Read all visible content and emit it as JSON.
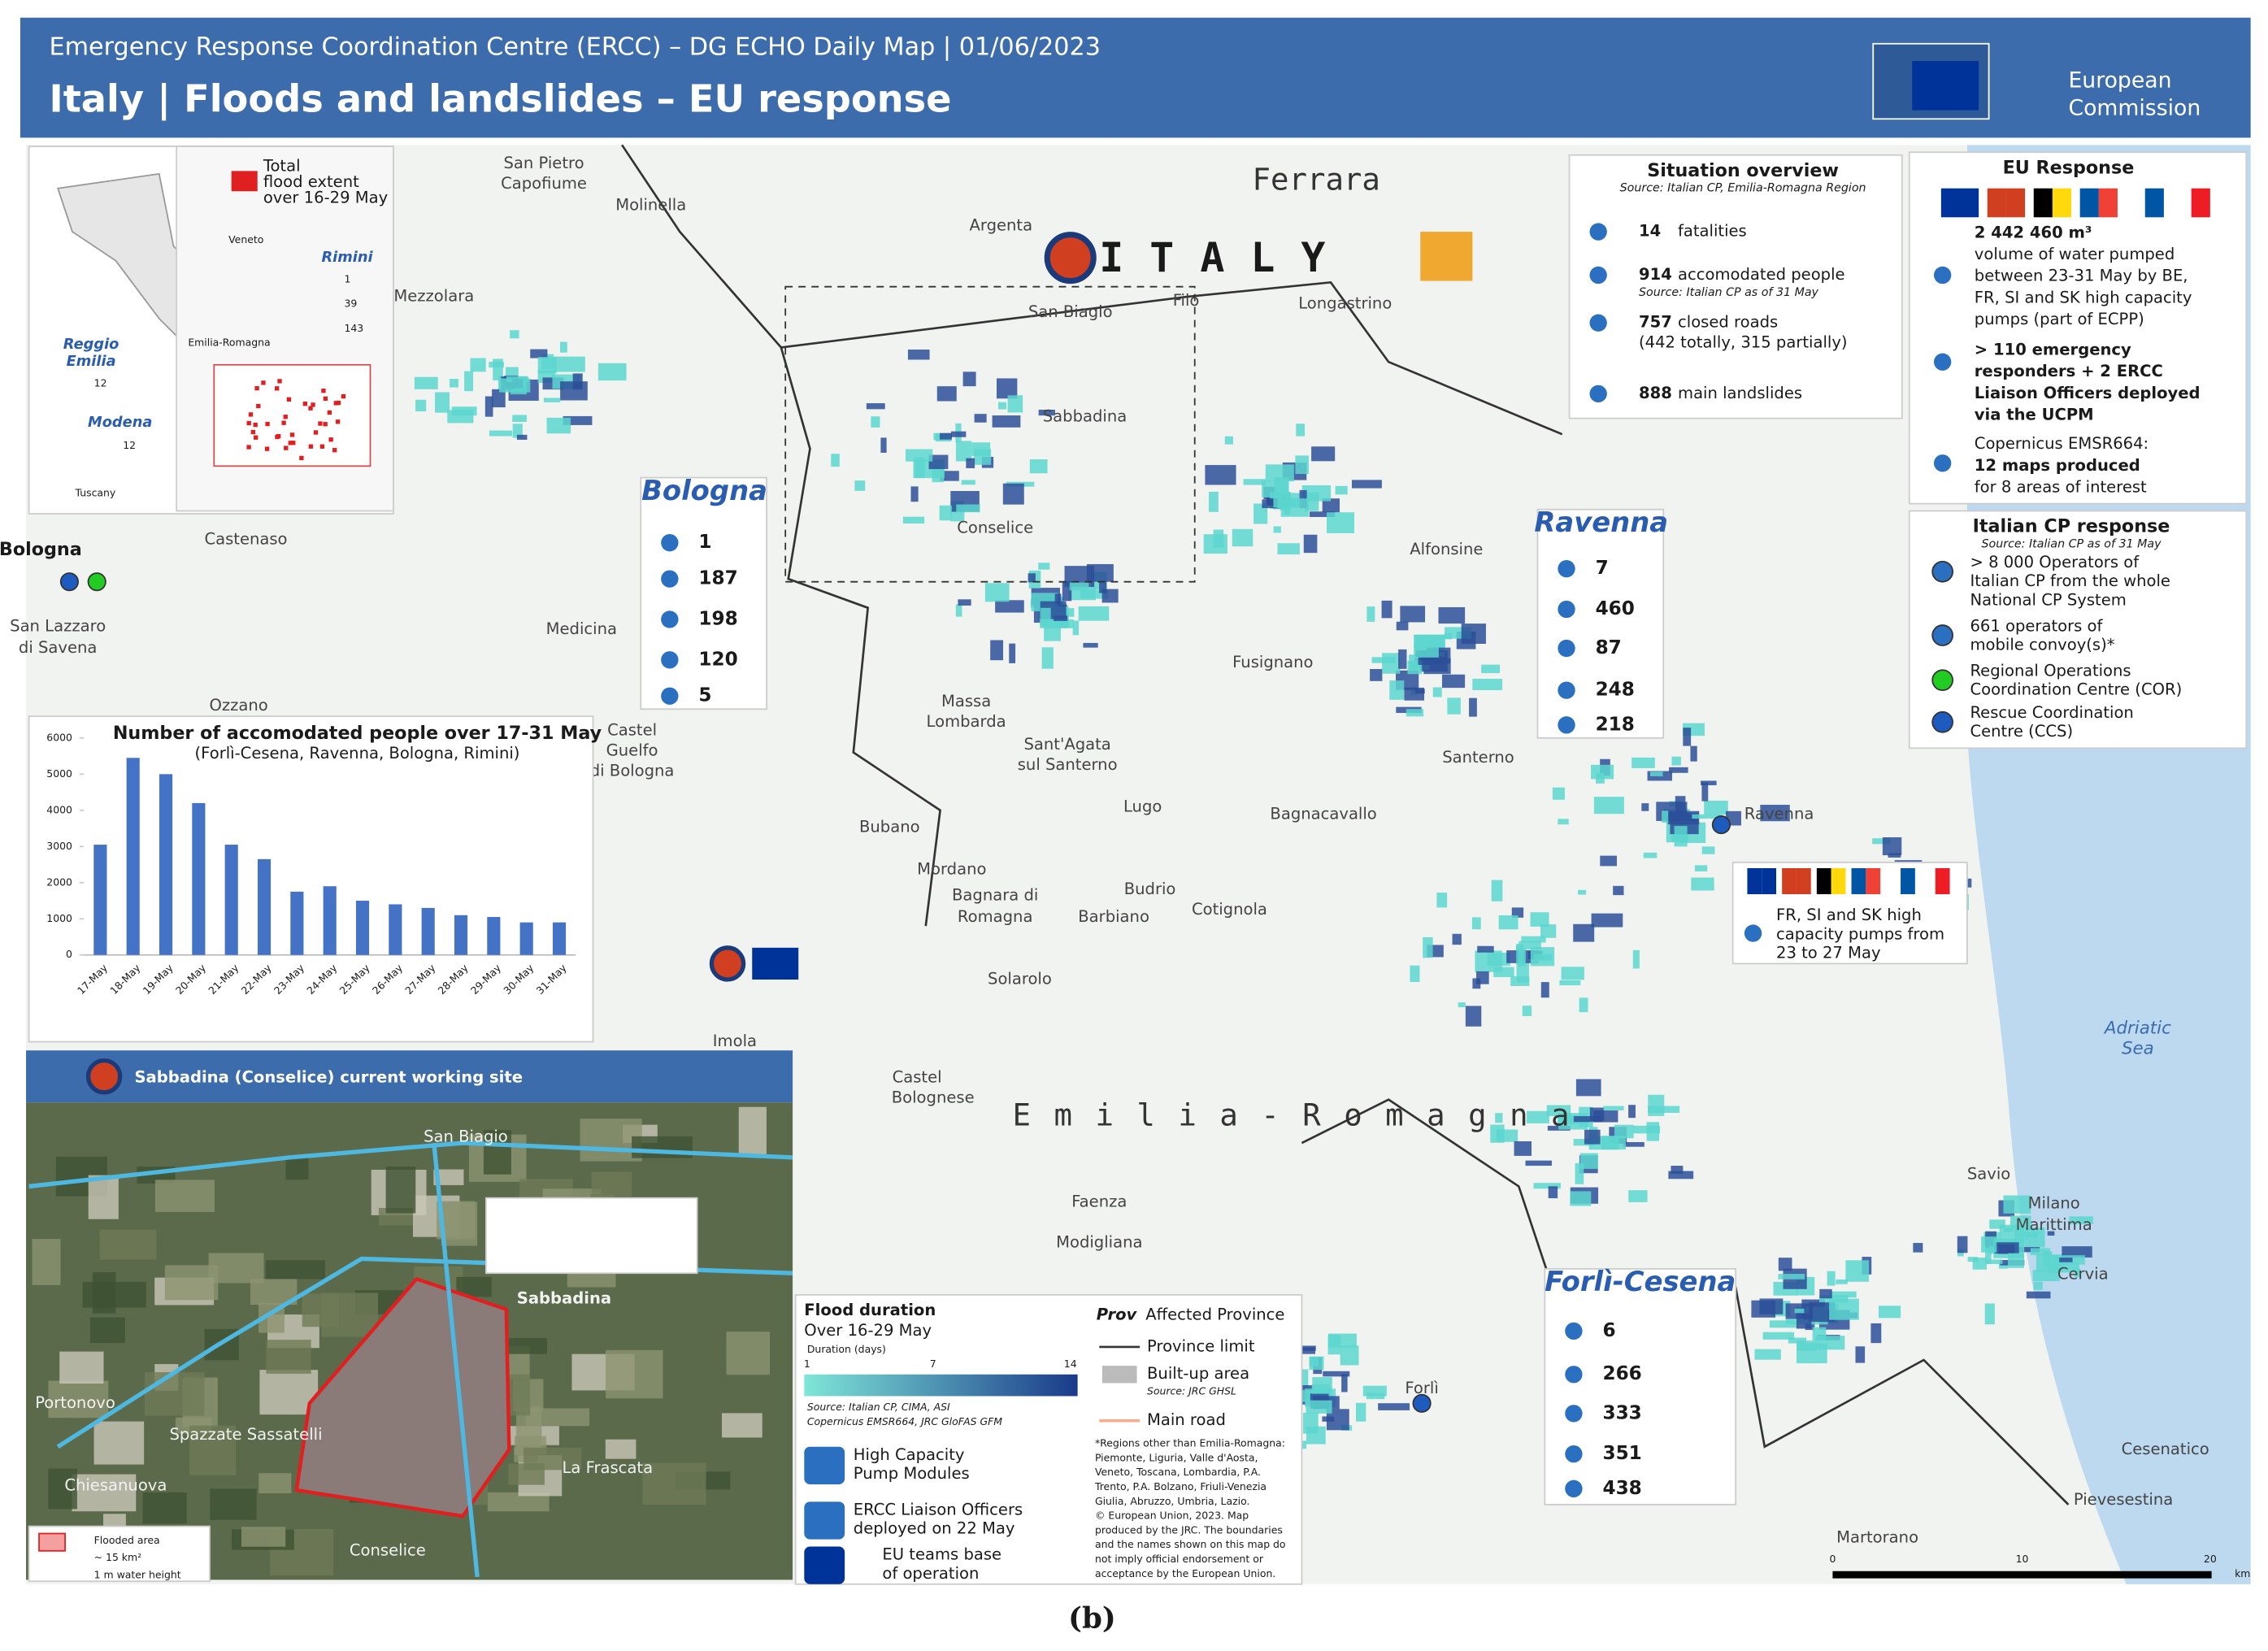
{
  "header": {
    "subtitle": "Emergency Response Coordination Centre (ERCC) – DG ECHO Daily Map | 01/06/2023",
    "title": "Italy | Floods and landslides – EU response",
    "logo": [
      "European",
      "Commission"
    ]
  },
  "map": {
    "country": "ITALY",
    "region": "Emilia-Romagna",
    "sea": [
      "Adriatic",
      "Sea"
    ],
    "places": [
      "Ferrara",
      "San Pietro",
      "Capofiume",
      "Molinella",
      "Argenta",
      "San Biagio",
      "Filo",
      "Longastrino",
      "Mezzolara",
      "Sabbadina",
      "Conselice",
      "Alfonsine",
      "Bologna",
      "Castenaso",
      "San Lazzaro",
      "di Savena",
      "Medicina",
      "Ozzano",
      "Castel",
      "Guelfo",
      "di Bologna",
      "Massa",
      "Lombarda",
      "Sant'Agata",
      "sul Santerno",
      "Fusignano",
      "Santerno",
      "Lugo",
      "Bagnacavallo",
      "Ravenna",
      "Bubano",
      "Mordano",
      "Bagnara di",
      "Romagna",
      "Barbiano",
      "Budrio",
      "Cotignola",
      "Imola",
      "Solarolo",
      "Castel",
      "Bolognese",
      "Faenza",
      "Modigliana",
      "Savio",
      "Milano",
      "Marittima",
      "Cervia",
      "Forlì",
      "Cesenatico",
      "Pievesestina",
      "Martorano"
    ],
    "scale": [
      "0",
      "10",
      "20"
    ],
    "scale_unit": "km"
  },
  "overview_inset": {
    "legend": [
      "Total",
      "flood extent",
      "over 16-29 May"
    ],
    "regions": [
      "Veneto",
      "Emilia-Romagna",
      "Tuscany"
    ],
    "areas": [
      {
        "name": "Rimini",
        "values": [
          1,
          39,
          143
        ]
      },
      {
        "name": [
          "Reggio",
          "Emilia"
        ],
        "values": [
          12
        ]
      },
      {
        "name": "Modena",
        "values": [
          12
        ]
      }
    ]
  },
  "situation_overview": {
    "title": "Situation overview",
    "source": "Source: Italian CP, Emilia-Romagna Region",
    "items": [
      {
        "number": 14,
        "text": "fatalities"
      },
      {
        "number": 914,
        "text": "accomodated people",
        "source": "Source: Italian CP as of 31 May"
      },
      {
        "number": 757,
        "text": "closed roads",
        "detail": "(442 totally, 315 partially)"
      },
      {
        "number": 888,
        "text": "main landslides"
      }
    ]
  },
  "provinces": [
    {
      "name": "Bologna",
      "values": [
        1,
        187,
        198,
        120,
        5
      ]
    },
    {
      "name": "Ravenna",
      "values": [
        7,
        460,
        87,
        248,
        218
      ]
    },
    {
      "name": "Forlì-Cesena",
      "values": [
        6,
        266,
        333,
        351,
        438
      ]
    }
  ],
  "eu_response": {
    "title": "EU Response",
    "volume": "2 442 460 m³",
    "volume_text": [
      "volume of water pumped",
      "between 23-31 May by BE,",
      "FR, SI and SK high capacity",
      "pumps (part of ECPP)"
    ],
    "responders": [
      "> 110 emergency",
      "responders + 2 ERCC",
      "Liaison Officers deployed",
      "via the UCPM"
    ],
    "copernicus": [
      "Copernicus EMSR664:",
      "12 maps produced",
      "for 8 areas of interest"
    ]
  },
  "italian_cp": {
    "title": "Italian CP response",
    "source": "Source: Italian CP as of 31 May",
    "items": [
      [
        "> 8 000 Operators of",
        "Italian CP from the whole",
        "National CP System"
      ],
      [
        "661 operators of",
        "mobile convoy(s)*"
      ],
      [
        "Regional Operations",
        "Coordination Centre (COR)"
      ],
      [
        "Rescue Coordination",
        "Centre (CCS)"
      ]
    ]
  },
  "callout": [
    "FR, SI and SK high",
    "capacity pumps from",
    "23 to 27 May"
  ],
  "chart_data": {
    "type": "bar",
    "title": "Number of accomodated people over 17-31 May",
    "subtitle": "(Forlì-Cesena, Ravenna, Bologna, Rimini)",
    "categories": [
      "17-May",
      "18-May",
      "19-May",
      "20-May",
      "21-May",
      "22-May",
      "23-May",
      "24-May",
      "25-May",
      "26-May",
      "27-May",
      "28-May",
      "29-May",
      "30-May",
      "31-May"
    ],
    "values": [
      3050,
      5450,
      5000,
      4200,
      3050,
      2650,
      1750,
      1900,
      1500,
      1400,
      1300,
      1100,
      1050,
      900,
      900
    ],
    "color": "#4472c4",
    "ylim": [
      0,
      6000
    ],
    "yticks": [
      0,
      1000,
      2000,
      3000,
      4000,
      5000,
      6000
    ],
    "grid": false
  },
  "site_inset": {
    "title": "Sabbadina (Conselice) current working site",
    "places": [
      "San Biagio",
      "Sabbadina",
      "Conselice",
      "Portonovo",
      "Spazzate Sassatelli",
      "Chiesanuova",
      "La Frascata"
    ],
    "legend": [
      "Flooded area",
      "~ 15 km²",
      "1 m water height"
    ]
  },
  "legend": {
    "flood_title": "Flood duration",
    "flood_period": "Over 16-29 May",
    "duration_label": "Duration (days)",
    "duration_ticks": [
      "1",
      "7",
      "14"
    ],
    "sources": [
      "Source: Italian CP, CIMA, ASI",
      "Copernicus EMSR664, JRC GloFAS GFM"
    ],
    "items": [
      [
        "High Capacity",
        "Pump Modules"
      ],
      [
        "ERCC Liaison Officers",
        "deployed on 22 May"
      ],
      [
        "EU teams base",
        "of operation"
      ]
    ],
    "prov_abbr": "Prov",
    "affected": "Affected Province",
    "province_limit": "Province limit",
    "built_up": "Built-up area",
    "built_source": "Source: JRC GHSL",
    "main_road": "Main road",
    "disclaimer": [
      "*Regions other than Emilia-Romagna:",
      "Piemonte, Liguria, Valle d'Aosta,",
      "Veneto, Toscana, Lombardia, P.A.",
      "Trento, P.A. Bolzano, Friuli-Venezia",
      "Giulia, Abruzzo, Umbria, Lazio.",
      "© European Union, 2023. Map",
      "produced by the JRC. The boundaries",
      "and the names shown on this map do",
      "not imply official endorsement or",
      "acceptance by the European Union."
    ]
  },
  "caption": "(b)"
}
